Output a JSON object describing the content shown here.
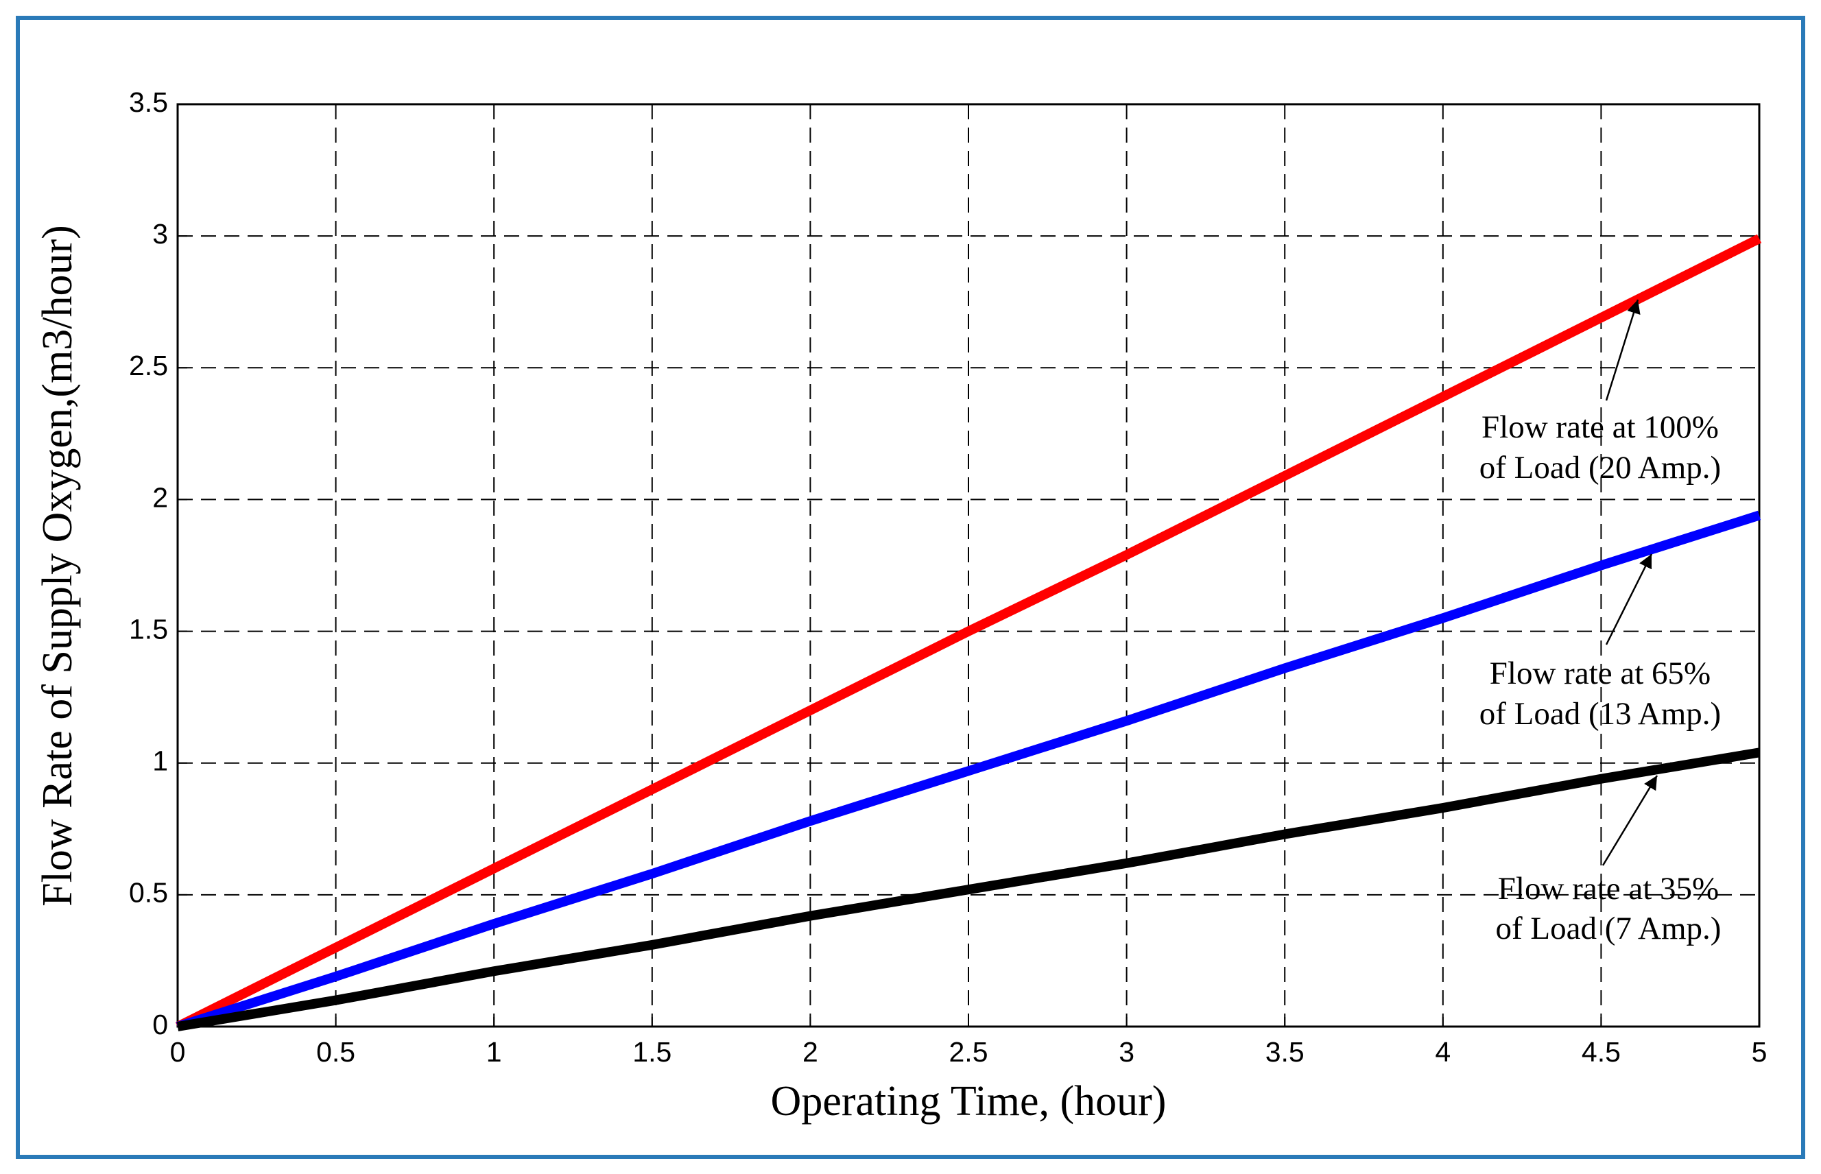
{
  "chart_data": {
    "type": "line",
    "xlabel": "Operating Time, (hour)",
    "ylabel": "Flow Rate of Supply Oxygen,(m3/hour)",
    "x": [
      0,
      0.5,
      1,
      1.5,
      2,
      2.5,
      3,
      3.5,
      4,
      4.5,
      5
    ],
    "series": [
      {
        "color": "#ff0000",
        "values": [
          0,
          0.3,
          0.6,
          0.9,
          1.2,
          1.5,
          1.79,
          2.09,
          2.39,
          2.69,
          2.99
        ]
      },
      {
        "color": "#0000ff",
        "values": [
          0,
          0.19,
          0.39,
          0.58,
          0.78,
          0.97,
          1.16,
          1.36,
          1.55,
          1.75,
          1.94
        ]
      },
      {
        "color": "#000000",
        "values": [
          0,
          0.1,
          0.21,
          0.31,
          0.42,
          0.52,
          0.62,
          0.73,
          0.83,
          0.94,
          1.04
        ]
      }
    ],
    "annotations": [
      {
        "lines": [
          "Flow rate at 100%",
          "of Load (20 Amp.)"
        ]
      },
      {
        "lines": [
          "Flow rate at 65%",
          "of Load (13 Amp.)"
        ]
      },
      {
        "lines": [
          "Flow rate at 35%",
          "of Load (7 Amp.)"
        ]
      }
    ],
    "xlim": [
      0,
      5
    ],
    "ylim": [
      0,
      3.5
    ],
    "xticks": [
      0,
      0.5,
      1,
      1.5,
      2,
      2.5,
      3,
      3.5,
      4,
      4.5,
      5
    ],
    "yticks": [
      0,
      0.5,
      1,
      1.5,
      2,
      2.5,
      3,
      3.5
    ],
    "grid": true
  }
}
